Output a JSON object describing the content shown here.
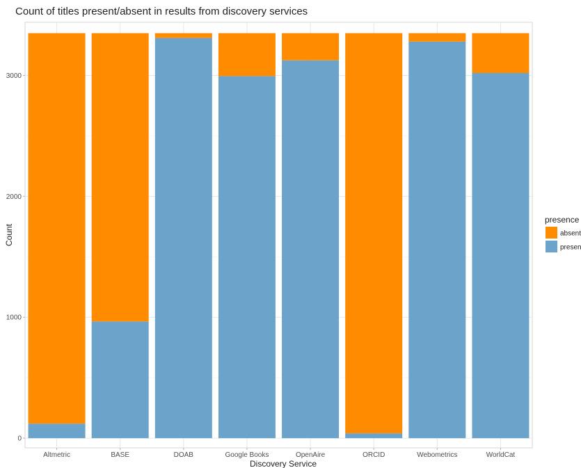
{
  "chart_data": {
    "type": "bar",
    "stacked": true,
    "title": "Count of titles present/absent in results from discovery services",
    "xlabel": "Discovery Service",
    "ylabel": "Count",
    "ylim": [
      -80,
      3440
    ],
    "yticks": [
      0,
      1000,
      2000,
      3000
    ],
    "grid": true,
    "legend_position": "right",
    "legend_title": "presence",
    "categories": [
      "Altmetric",
      "BASE",
      "DOAB",
      "Google Books",
      "OpenAire",
      "ORCID",
      "Webometrics",
      "WorldCat"
    ],
    "series": [
      {
        "name": "present",
        "color": "#6ca3ca",
        "values": [
          120,
          965,
          3310,
          2995,
          3125,
          40,
          3280,
          3020
        ]
      },
      {
        "name": "absent",
        "color": "#ff8c00",
        "values": [
          3230,
          2385,
          40,
          355,
          225,
          3310,
          70,
          330
        ]
      }
    ],
    "legend_order": [
      "absent",
      "present"
    ]
  }
}
